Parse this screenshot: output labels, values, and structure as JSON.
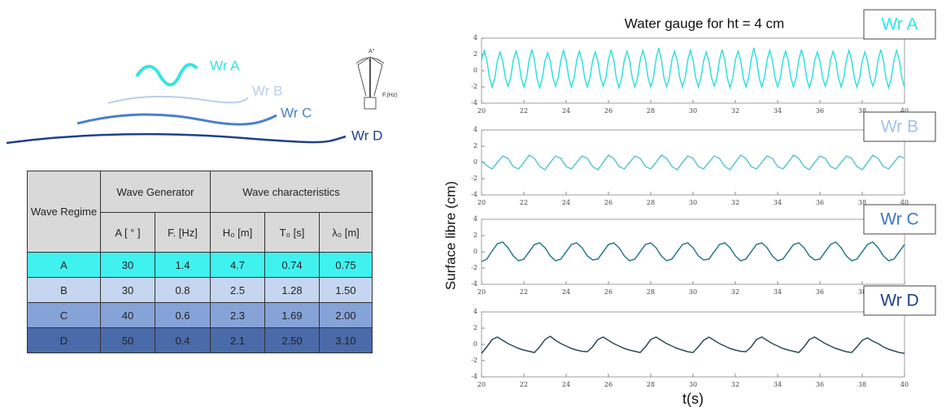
{
  "diagram": {
    "waves": [
      "Wr A",
      "Wr B",
      "Wr C",
      "Wr D"
    ],
    "pendulum": {
      "angle_label": "A°",
      "frequency_label": "F.(Hz)"
    }
  },
  "table": {
    "headers": {
      "regime": "Wave Regime",
      "generator": "Wave Generator",
      "characteristics": "Wave characteristics",
      "columns": [
        "A [ ° ]",
        "F. [Hz]",
        "H₀ [m]",
        "T₀ [s]",
        "λ₀ [m]"
      ]
    },
    "rows": [
      [
        "A",
        "30",
        "1.4",
        "4.7",
        "0.74",
        "0.75"
      ],
      [
        "B",
        "30",
        "0.8",
        "2.5",
        "1.28",
        "1.50"
      ],
      [
        "C",
        "40",
        "0.6",
        "2.3",
        "1.69",
        "2.00"
      ],
      [
        "D",
        "50",
        "0.4",
        "2.1",
        "2.50",
        "3.10"
      ]
    ],
    "row_colors": [
      "#3ff2f0",
      "#c6d6f0",
      "#86a3d8",
      "#4a6aaa"
    ]
  },
  "figure": {
    "ylabel": "Surface libre (cm)",
    "xlabel": "t(s)"
  },
  "chart_data": [
    {
      "type": "line",
      "title": "Water gauge for ht = 4 cm",
      "label_color": "#2ee6e6",
      "x": [
        20,
        20.125,
        20.25,
        20.375,
        20.5,
        20.625,
        20.75,
        20.875,
        21,
        21.125,
        21.25,
        21.375,
        21.5,
        21.625,
        21.75,
        21.875,
        22,
        22.125,
        22.25,
        22.375,
        22.5,
        22.625,
        22.75,
        22.875,
        23,
        23.125,
        23.25,
        23.375,
        23.5,
        23.625,
        23.75,
        23.875,
        24,
        24.125,
        24.25,
        24.375,
        24.5,
        24.625,
        24.75,
        24.875,
        25,
        25.125,
        25.25,
        25.375,
        25.5,
        25.625,
        25.75,
        25.875,
        26,
        26.125,
        26.25,
        26.375,
        26.5,
        26.625,
        26.75,
        26.875,
        27,
        27.125,
        27.25,
        27.375,
        27.5,
        27.625,
        27.75,
        27.875,
        28,
        28.125,
        28.25,
        28.375,
        28.5,
        28.625,
        28.75,
        28.875,
        29,
        29.125,
        29.25,
        29.375,
        29.5,
        29.625,
        29.75,
        29.875,
        30,
        30.125,
        30.25,
        30.375,
        30.5,
        30.625,
        30.75,
        30.875,
        31,
        31.125,
        31.25,
        31.375,
        31.5,
        31.625,
        31.75,
        31.875,
        32,
        32.125,
        32.25,
        32.375,
        32.5,
        32.625,
        32.75,
        32.875,
        33,
        33.125,
        33.25,
        33.375,
        33.5,
        33.625,
        33.75,
        33.875,
        34,
        34.125,
        34.25,
        34.375,
        34.5,
        34.625,
        34.75,
        34.875,
        35,
        35.125,
        35.25,
        35.375,
        35.5,
        35.625,
        35.75,
        35.875,
        36,
        36.125,
        36.25,
        36.375,
        36.5,
        36.625,
        36.75,
        36.875,
        37,
        37.125,
        37.25,
        37.375,
        37.5,
        37.625,
        37.75,
        37.875,
        38,
        38.125,
        38.25,
        38.375,
        38.5,
        38.625,
        38.75,
        38.875,
        39,
        39.125,
        39.25,
        39.375,
        39.5,
        39.625,
        39.75,
        39.875,
        40
      ],
      "series": [
        {
          "name": "Wr A",
          "color": "#33e0dc",
          "values": [
            1.3,
            2.5,
            1.3,
            -0.9,
            -2.0,
            -0.9,
            1.2,
            2.3,
            1.2,
            -0.9,
            -1.9,
            -0.9,
            1.3,
            2.4,
            1.3,
            -0.9,
            -2.0,
            -0.9,
            1.3,
            2.6,
            1.3,
            -1.0,
            -2.1,
            -0.9,
            1.2,
            2.2,
            1.2,
            -0.9,
            -1.9,
            -0.9,
            1.3,
            2.5,
            1.3,
            -0.9,
            -2.0,
            -0.9,
            1.3,
            2.4,
            1.3,
            -0.9,
            -2.0,
            -0.9,
            1.2,
            2.3,
            1.2,
            -0.9,
            -1.9,
            -0.9,
            1.3,
            2.6,
            1.3,
            -1.0,
            -2.1,
            -0.9,
            1.3,
            2.4,
            1.3,
            -0.9,
            -2.0,
            -0.9,
            1.3,
            2.5,
            1.3,
            -0.9,
            -2.0,
            -0.9,
            1.4,
            2.8,
            1.4,
            -0.9,
            -2.0,
            -0.9,
            1.3,
            2.4,
            1.3,
            -0.9,
            -2.0,
            -0.9,
            1.3,
            2.5,
            1.3,
            -0.9,
            -2.0,
            -0.9,
            1.2,
            2.3,
            1.2,
            -0.9,
            -1.9,
            -0.9,
            1.3,
            2.6,
            1.3,
            -1.0,
            -2.1,
            -0.9,
            1.3,
            2.4,
            1.3,
            -0.9,
            -2.0,
            -0.9,
            1.4,
            2.8,
            1.4,
            -0.9,
            -2.0,
            -0.9,
            1.3,
            2.5,
            1.3,
            -0.9,
            -2.0,
            -0.9,
            1.3,
            2.4,
            1.3,
            -0.9,
            -2.0,
            -0.9,
            1.3,
            2.6,
            1.3,
            -1.0,
            -2.1,
            -0.9,
            1.2,
            2.3,
            1.2,
            -0.9,
            -1.9,
            -0.9,
            1.3,
            2.4,
            1.3,
            -0.9,
            -2.0,
            -0.9,
            1.3,
            2.5,
            1.3,
            -0.9,
            -2.0,
            -0.9,
            1.2,
            2.3,
            1.2,
            -0.9,
            -1.9,
            -0.9,
            1.3,
            2.6,
            1.3,
            -1.0,
            -2.1,
            -0.9,
            1.3,
            2.5,
            1.3,
            -0.9,
            -2.0
          ]
        }
      ],
      "xlim": [
        20,
        40
      ],
      "ylim": [
        -4,
        4
      ],
      "xticks": [
        20,
        22,
        24,
        26,
        28,
        30,
        32,
        34,
        36,
        38,
        40
      ],
      "yticks": [
        -4,
        -2,
        0,
        2,
        4
      ]
    },
    {
      "type": "line",
      "label_color": "#9fc2ee",
      "x": [
        20,
        20.25,
        20.5,
        20.75,
        21,
        21.25,
        21.5,
        21.75,
        22,
        22.25,
        22.5,
        22.75,
        23,
        23.25,
        23.5,
        23.75,
        24,
        24.25,
        24.5,
        24.75,
        25,
        25.25,
        25.5,
        25.75,
        26,
        26.25,
        26.5,
        26.75,
        27,
        27.25,
        27.5,
        27.75,
        28,
        28.25,
        28.5,
        28.75,
        29,
        29.25,
        29.5,
        29.75,
        30,
        30.25,
        30.5,
        30.75,
        31,
        31.25,
        31.5,
        31.75,
        32,
        32.25,
        32.5,
        32.75,
        33,
        33.25,
        33.5,
        33.75,
        34,
        34.25,
        34.5,
        34.75,
        35,
        35.25,
        35.5,
        35.75,
        36,
        36.25,
        36.5,
        36.75,
        37,
        37.25,
        37.5,
        37.75,
        38,
        38.25,
        38.5,
        38.75,
        39,
        39.25,
        39.5,
        39.75,
        40
      ],
      "series": [
        {
          "name": "Wr B",
          "color": "#5cc6cf",
          "values": [
            0.2,
            -0.4,
            -0.8,
            0,
            0.8,
            0.5,
            -0.5,
            -0.8,
            0,
            0.9,
            0.5,
            -0.5,
            -0.9,
            0,
            0.8,
            0.5,
            -0.5,
            -0.8,
            0,
            0.8,
            0.5,
            -0.5,
            -0.9,
            0,
            0.9,
            0.5,
            -0.5,
            -0.8,
            0,
            0.8,
            0.5,
            -0.5,
            -0.8,
            0,
            0.9,
            0.5,
            -0.5,
            -0.9,
            0,
            0.8,
            0.5,
            -0.5,
            -0.8,
            0,
            0.8,
            0.5,
            -0.5,
            -0.9,
            0,
            0.9,
            0.5,
            -0.5,
            -0.8,
            0,
            0.8,
            0.5,
            -0.5,
            -0.8,
            0,
            0.9,
            0.5,
            -0.5,
            -0.9,
            0,
            0.8,
            0.5,
            -0.5,
            -0.8,
            0,
            0.8,
            0.5,
            -0.5,
            -0.9,
            0,
            0.9,
            0.5,
            -0.5,
            -0.8,
            0,
            0.8,
            0.5
          ]
        }
      ],
      "xlim": [
        20,
        40
      ],
      "ylim": [
        -4,
        4
      ],
      "xticks": [
        20,
        22,
        24,
        26,
        28,
        30,
        32,
        34,
        36,
        38,
        40
      ],
      "yticks": [
        -4,
        -2,
        0,
        2,
        4
      ]
    },
    {
      "type": "line",
      "label_color": "#3b76c6",
      "x": [
        20,
        20.25,
        20.5,
        20.75,
        21,
        21.25,
        21.5,
        21.75,
        22,
        22.25,
        22.5,
        22.75,
        23,
        23.25,
        23.5,
        23.75,
        24,
        24.25,
        24.5,
        24.75,
        25,
        25.25,
        25.5,
        25.75,
        26,
        26.25,
        26.5,
        26.75,
        27,
        27.25,
        27.5,
        27.75,
        28,
        28.25,
        28.5,
        28.75,
        29,
        29.25,
        29.5,
        29.75,
        30,
        30.25,
        30.5,
        30.75,
        31,
        31.25,
        31.5,
        31.75,
        32,
        32.25,
        32.5,
        32.75,
        33,
        33.25,
        33.5,
        33.75,
        34,
        34.25,
        34.5,
        34.75,
        35,
        35.25,
        35.5,
        35.75,
        36,
        36.25,
        36.5,
        36.75,
        37,
        37.25,
        37.5,
        37.75,
        38,
        38.25,
        38.5,
        38.75,
        39,
        39.25,
        39.5,
        39.75,
        40
      ],
      "series": [
        {
          "name": "Wr C",
          "color": "#2a7890",
          "values": [
            -1.2,
            -0.9,
            0.1,
            1.0,
            1.2,
            0.5,
            -0.5,
            -1.1,
            -0.9,
            0,
            0.9,
            1.1,
            0.5,
            -0.5,
            -1.1,
            -0.9,
            0,
            0.9,
            1.1,
            0.5,
            -0.5,
            -1.0,
            -0.9,
            0,
            0.9,
            1.1,
            0.5,
            -0.5,
            -1.1,
            -0.9,
            0,
            0.9,
            1.1,
            0.5,
            -0.5,
            -1.1,
            -0.9,
            0,
            0.9,
            1.1,
            0.5,
            -0.5,
            -1.0,
            -0.9,
            0,
            0.9,
            1.1,
            0.5,
            -0.5,
            -1.1,
            -0.9,
            0,
            0.9,
            1.1,
            0.5,
            -0.5,
            -1.1,
            -0.9,
            0,
            0.9,
            1.1,
            0.5,
            -0.5,
            -1.0,
            -0.9,
            0,
            0.9,
            1.2,
            0.5,
            -0.5,
            -1.1,
            -0.9,
            0,
            0.9,
            1.2,
            0.5,
            -0.5,
            -1.1,
            -0.9,
            0,
            0.9
          ]
        }
      ],
      "xlim": [
        20,
        40
      ],
      "ylim": [
        -4,
        4
      ],
      "xticks": [
        20,
        22,
        24,
        26,
        28,
        30,
        32,
        34,
        36,
        38,
        40
      ],
      "yticks": [
        -4,
        -2,
        0,
        2,
        4
      ]
    },
    {
      "type": "line",
      "label_color": "#1f3f8a",
      "x": [
        20,
        20.25,
        20.5,
        20.75,
        21,
        21.25,
        21.5,
        21.75,
        22,
        22.25,
        22.5,
        22.75,
        23,
        23.25,
        23.5,
        23.75,
        24,
        24.25,
        24.5,
        24.75,
        25,
        25.25,
        25.5,
        25.75,
        26,
        26.25,
        26.5,
        26.75,
        27,
        27.25,
        27.5,
        27.75,
        28,
        28.25,
        28.5,
        28.75,
        29,
        29.25,
        29.5,
        29.75,
        30,
        30.25,
        30.5,
        30.75,
        31,
        31.25,
        31.5,
        31.75,
        32,
        32.25,
        32.5,
        32.75,
        33,
        33.25,
        33.5,
        33.75,
        34,
        34.25,
        34.5,
        34.75,
        35,
        35.25,
        35.5,
        35.75,
        36,
        36.25,
        36.5,
        36.75,
        37,
        37.25,
        37.5,
        37.75,
        38,
        38.25,
        38.5,
        38.75,
        39,
        39.25,
        39.5,
        39.75,
        40
      ],
      "series": [
        {
          "name": "Wr D",
          "color": "#2e4a55",
          "values": [
            -1.1,
            -0.3,
            0.6,
            0.9,
            0.5,
            0.1,
            -0.2,
            -0.5,
            -0.7,
            -0.85,
            -1.0,
            -0.3,
            0.6,
            1.0,
            0.5,
            0.1,
            -0.2,
            -0.5,
            -0.7,
            -0.85,
            -0.9,
            -0.3,
            0.6,
            0.9,
            0.5,
            0.1,
            -0.2,
            -0.5,
            -0.7,
            -0.85,
            -1.0,
            -0.3,
            0.6,
            0.9,
            0.5,
            0.1,
            -0.2,
            -0.5,
            -0.7,
            -0.9,
            -1.0,
            -0.3,
            0.5,
            0.9,
            0.5,
            0.1,
            -0.2,
            -0.5,
            -0.7,
            -0.85,
            -0.9,
            -0.3,
            0.6,
            0.9,
            0.5,
            0.1,
            -0.2,
            -0.5,
            -0.7,
            -0.85,
            -1.0,
            -0.3,
            0.6,
            0.9,
            0.5,
            0.1,
            -0.2,
            -0.5,
            -0.7,
            -0.9,
            -1.0,
            -0.3,
            0.5,
            0.8,
            0.4,
            0.1,
            -0.3,
            -0.6,
            -0.8,
            -1.0,
            -1.1
          ]
        }
      ],
      "xlim": [
        20,
        40
      ],
      "ylim": [
        -4,
        4
      ],
      "xticks": [
        20,
        22,
        24,
        26,
        28,
        30,
        32,
        34,
        36,
        38,
        40
      ],
      "yticks": [
        -4,
        -2,
        0,
        2,
        4
      ]
    }
  ]
}
